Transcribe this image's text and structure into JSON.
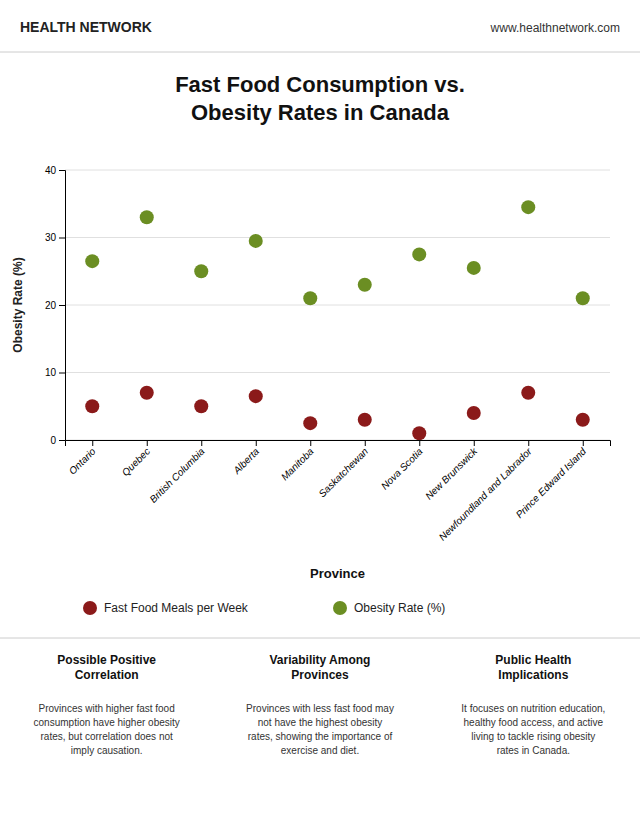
{
  "chart_data": {
    "type": "scatter",
    "title": "Fast Food Consumption vs.\nObesity Rates in Canada",
    "xlabel": "Province",
    "ylabel": "Obesity Rate (%)",
    "categories": [
      "Ontario",
      "Quebec",
      "British Columbia",
      "Alberta",
      "Manitoba",
      "Saskatchewan",
      "Nova Scotia",
      "New Brunswick",
      "Newfoundland and Labrador",
      "Prince Edward Island"
    ],
    "series": [
      {
        "name": "Fast Food Meals per Week",
        "color": "#8B1A1A",
        "values": [
          5,
          7,
          5,
          6.5,
          2.5,
          3,
          1,
          4,
          7,
          3
        ]
      },
      {
        "name": "Obesity Rate (%)",
        "color": "#6B8E23",
        "values": [
          26.5,
          33,
          25,
          29.5,
          21,
          23,
          27.5,
          25.5,
          34.5,
          21
        ]
      }
    ],
    "ylim": [
      0,
      40
    ],
    "yticks": [
      0,
      10,
      20,
      30,
      40
    ],
    "grid": true,
    "legend": "bottom",
    "annotations": [
      "HEALTH NETWORK",
      "www.healthnetwork.com",
      "Possible Positive\nCorrelation",
      "Provinces with higher fast food\nconsumption have higher obesity\nrates, but correlation does not\nimply causation.",
      "Variability Among\nProvinces",
      "Provinces with less fast food may\nnot have the highest obesity\nrates, showing the importance of\nexercise and diet.",
      "Public Health\nImplications",
      "It focuses on nutrition education,\nhealthy food access, and active\nliving to tackle rising obesity\nrates in Canada."
    ]
  }
}
